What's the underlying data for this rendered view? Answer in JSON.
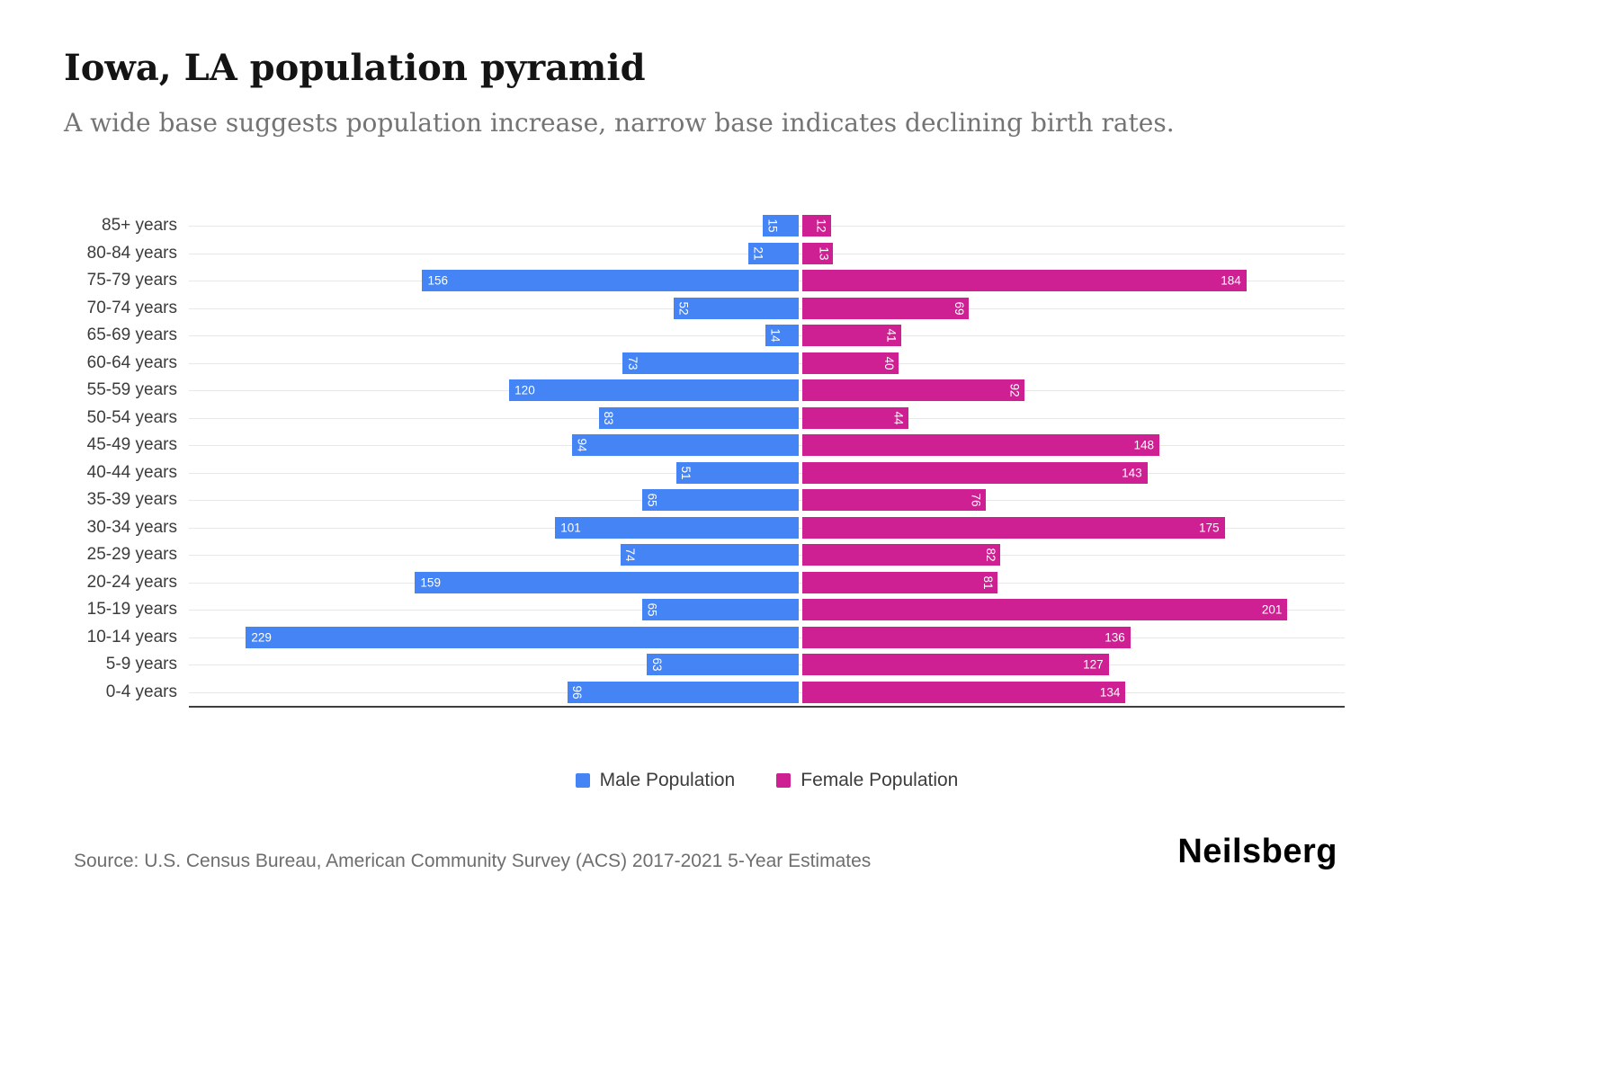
{
  "header": {
    "title": "Iowa, LA population pyramid",
    "subtitle": "A wide base suggests population increase, narrow base indicates declining birth rates."
  },
  "chart_data": {
    "type": "bar",
    "orientation": "horizontal-diverging-pyramid",
    "categories": [
      "85+ years",
      "80-84 years",
      "75-79 years",
      "70-74 years",
      "65-69 years",
      "60-64 years",
      "55-59 years",
      "50-54 years",
      "45-49 years",
      "40-44 years",
      "35-39 years",
      "30-34 years",
      "25-29 years",
      "20-24 years",
      "15-19 years",
      "10-14 years",
      "5-9 years",
      "0-4 years"
    ],
    "series": [
      {
        "name": "Male Population",
        "color": "#4584f4",
        "values": [
          15,
          21,
          156,
          52,
          14,
          73,
          120,
          83,
          94,
          51,
          65,
          101,
          74,
          159,
          65,
          229,
          63,
          96
        ]
      },
      {
        "name": "Female Population",
        "color": "#ce2092",
        "values": [
          12,
          13,
          184,
          69,
          41,
          40,
          92,
          44,
          148,
          143,
          76,
          175,
          82,
          81,
          201,
          136,
          127,
          134
        ]
      }
    ],
    "value_labels": "inside-end, white, rotated vertical when value < 100",
    "xlim_each_side": [
      0,
      240
    ],
    "grid": "light horizontal gridlines per category",
    "legend_position": "bottom-center"
  },
  "legend": {
    "male_label": "Male Population",
    "female_label": "Female Population"
  },
  "footer": {
    "source": "Source: U.S. Census Bureau, American Community Survey (ACS) 2017-2021 5-Year Estimates",
    "brand": "Neilsberg"
  },
  "colors": {
    "male": "#4584f4",
    "female": "#ce2092",
    "title": "#141414",
    "subtitle": "#747474",
    "gridline": "#e8e8e8",
    "axis_line": "#3e3e3e"
  }
}
